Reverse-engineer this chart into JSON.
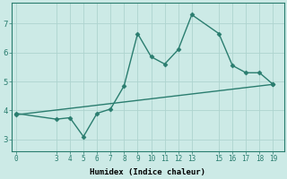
{
  "xlabel": "Humidex (Indice chaleur)",
  "line1_x": [
    0,
    3,
    4,
    5,
    6,
    7,
    8,
    9,
    10,
    11,
    12,
    13,
    15,
    16,
    17,
    18,
    19
  ],
  "line1_y": [
    3.9,
    3.7,
    3.75,
    3.1,
    3.9,
    4.05,
    4.85,
    6.65,
    5.85,
    5.6,
    6.1,
    7.3,
    6.65,
    5.55,
    5.3,
    5.3,
    4.9
  ],
  "line2_x": [
    0,
    19
  ],
  "line2_y": [
    3.85,
    4.9
  ],
  "line_color": "#2a7d6f",
  "bg_color": "#cceae6",
  "grid_color": "#aed4cf",
  "ylim": [
    2.6,
    7.7
  ],
  "yticks": [
    3,
    4,
    5,
    6,
    7
  ],
  "xticks": [
    0,
    3,
    4,
    5,
    6,
    7,
    8,
    9,
    10,
    11,
    12,
    13,
    15,
    16,
    17,
    18,
    19
  ],
  "xlim": [
    -0.3,
    19.8
  ],
  "marker": "D",
  "markersize": 2.5,
  "linewidth": 1.0
}
